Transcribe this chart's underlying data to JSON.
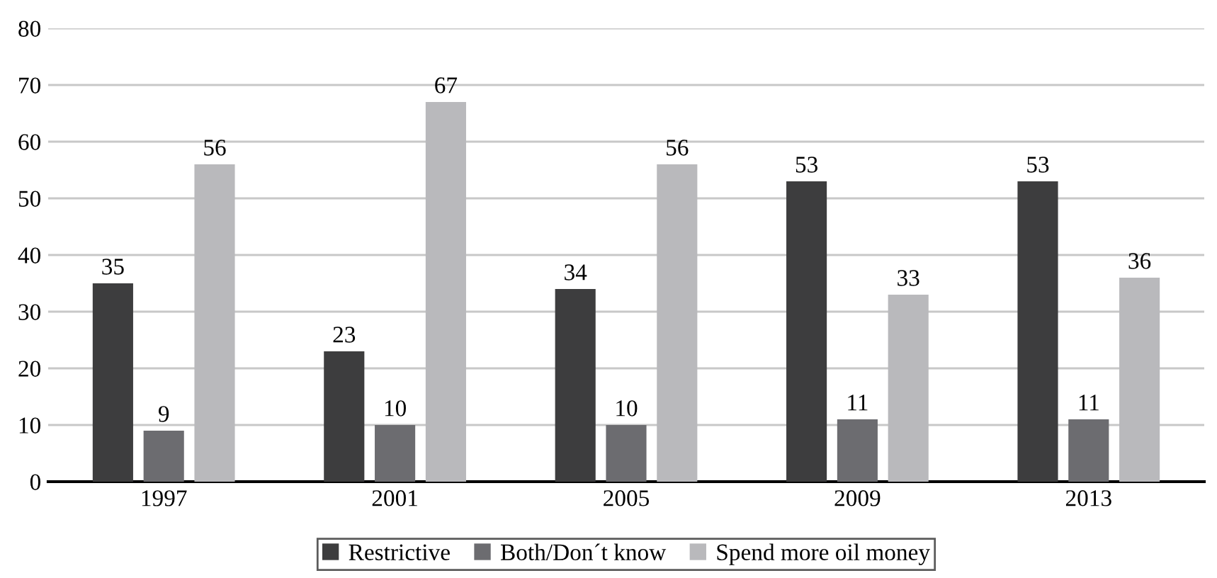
{
  "chart_data": {
    "type": "bar",
    "categories": [
      "1997",
      "2001",
      "2005",
      "2009",
      "2013"
    ],
    "series": [
      {
        "name": "Restrictive",
        "color": "#3d3d3e",
        "values": [
          35,
          23,
          34,
          53,
          53
        ]
      },
      {
        "name": "Both/Don´t know",
        "color": "#6c6c70",
        "values": [
          9,
          10,
          10,
          11,
          11
        ]
      },
      {
        "name": "Spend more oil money",
        "color": "#b9b9bc",
        "values": [
          56,
          67,
          56,
          33,
          36
        ]
      }
    ],
    "ylim": [
      0,
      80
    ],
    "yticks": [
      0,
      10,
      20,
      30,
      40,
      50,
      60,
      70,
      80
    ],
    "grid": "y",
    "legend": "bottom",
    "data_labels": true
  }
}
